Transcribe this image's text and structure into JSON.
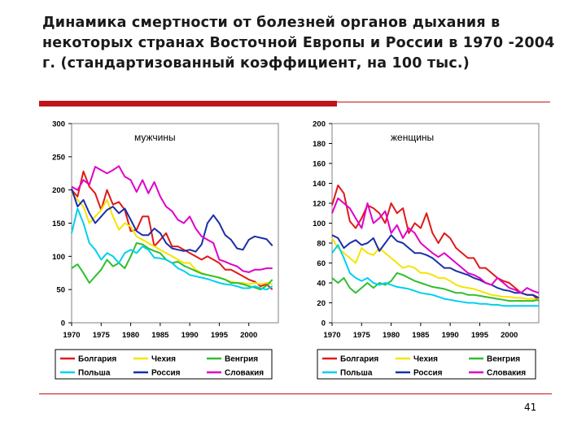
{
  "slide": {
    "title": "Динамика смертности от болезней органов дыхания в некоторых странах Восточной Европы и России в 1970 -2004 г. (стандартизованный коэффициент, на 100 тыс.)",
    "page_number": "41"
  },
  "chart_data": [
    {
      "type": "line",
      "title": "мужчины",
      "xlabel": "",
      "ylabel": "",
      "xlim": [
        1970,
        2005
      ],
      "ylim": [
        0,
        300
      ],
      "x_ticks": [
        1970,
        1975,
        1980,
        1985,
        1990,
        1995,
        2000
      ],
      "y_ticks": [
        0,
        50,
        100,
        150,
        200,
        250,
        300
      ],
      "legend_position": "bottom",
      "series": [
        {
          "name": "Болгария",
          "color": "#e01919",
          "x_start": 1970,
          "values": [
            200,
            190,
            228,
            205,
            195,
            170,
            200,
            178,
            182,
            170,
            138,
            140,
            160,
            160,
            115,
            125,
            135,
            115,
            115,
            110,
            105,
            100,
            95,
            100,
            95,
            90,
            80,
            80,
            75,
            70,
            65,
            62,
            55,
            58,
            50
          ]
        },
        {
          "name": "Чехия",
          "color": "#f5e400",
          "x_start": 1970,
          "values": [
            195,
            185,
            175,
            150,
            160,
            170,
            185,
            160,
            140,
            150,
            145,
            130,
            125,
            120,
            115,
            110,
            105,
            100,
            95,
            90,
            90,
            80,
            75,
            72,
            70,
            68,
            65,
            62,
            60,
            60,
            58,
            60,
            58,
            60,
            58
          ]
        },
        {
          "name": "Венгрия",
          "color": "#2fbf2f",
          "x_start": 1970,
          "values": [
            82,
            88,
            75,
            60,
            70,
            80,
            95,
            85,
            90,
            82,
            100,
            120,
            118,
            112,
            108,
            105,
            95,
            90,
            92,
            86,
            82,
            78,
            74,
            72,
            70,
            68,
            65,
            60,
            60,
            58,
            55,
            53,
            50,
            56,
            65
          ]
        },
        {
          "name": "Польша",
          "color": "#00d0f0",
          "x_start": 1970,
          "values": [
            135,
            172,
            150,
            120,
            110,
            95,
            105,
            100,
            90,
            105,
            110,
            105,
            115,
            110,
            98,
            97,
            95,
            90,
            82,
            78,
            72,
            70,
            68,
            66,
            63,
            60,
            58,
            57,
            55,
            52,
            52,
            55,
            52,
            50,
            55
          ]
        },
        {
          "name": "Россия",
          "color": "#1a2fa8",
          "x_start": 1970,
          "values": [
            202,
            175,
            185,
            165,
            150,
            160,
            170,
            175,
            165,
            172,
            155,
            138,
            132,
            132,
            142,
            135,
            120,
            112,
            110,
            108,
            110,
            107,
            118,
            150,
            162,
            150,
            132,
            125,
            112,
            110,
            125,
            130,
            128,
            126,
            116
          ]
        },
        {
          "name": "Словакия",
          "color": "#e000c8",
          "x_start": 1970,
          "values": [
            205,
            200,
            215,
            208,
            235,
            230,
            225,
            230,
            236,
            220,
            215,
            197,
            215,
            195,
            212,
            190,
            175,
            168,
            155,
            150,
            160,
            142,
            130,
            125,
            120,
            95,
            92,
            88,
            85,
            78,
            76,
            80,
            80,
            82,
            82
          ]
        }
      ]
    },
    {
      "type": "line",
      "title": "женщины",
      "xlabel": "",
      "ylabel": "",
      "xlim": [
        1970,
        2005
      ],
      "ylim": [
        0,
        200
      ],
      "x_ticks": [
        1970,
        1975,
        1980,
        1985,
        1990,
        1995,
        2000
      ],
      "y_ticks": [
        0,
        20,
        40,
        60,
        80,
        100,
        120,
        140,
        160,
        180,
        200
      ],
      "legend_position": "bottom",
      "series": [
        {
          "name": "Болгария",
          "color": "#e01919",
          "x_start": 1970,
          "values": [
            118,
            138,
            130,
            102,
            95,
            105,
            118,
            115,
            110,
            100,
            120,
            110,
            115,
            90,
            100,
            95,
            110,
            90,
            80,
            90,
            85,
            75,
            70,
            65,
            65,
            55,
            55,
            50,
            45,
            42,
            40,
            35,
            30,
            28,
            28,
            22
          ]
        },
        {
          "name": "Чехия",
          "color": "#f5e400",
          "x_start": 1970,
          "values": [
            85,
            75,
            70,
            65,
            60,
            75,
            70,
            68,
            75,
            70,
            65,
            60,
            55,
            57,
            55,
            50,
            50,
            48,
            45,
            45,
            42,
            38,
            36,
            35,
            34,
            32,
            30,
            28,
            27,
            26,
            26,
            25,
            25,
            24,
            24,
            23
          ]
        },
        {
          "name": "Венгрия",
          "color": "#2fbf2f",
          "x_start": 1970,
          "values": [
            45,
            40,
            45,
            35,
            30,
            35,
            40,
            35,
            40,
            38,
            42,
            50,
            48,
            45,
            42,
            40,
            38,
            36,
            35,
            34,
            32,
            30,
            30,
            28,
            28,
            27,
            26,
            25,
            24,
            23,
            22,
            22,
            22,
            22,
            22,
            23
          ]
        },
        {
          "name": "Польша",
          "color": "#00d0f0",
          "x_start": 1970,
          "values": [
            70,
            78,
            65,
            50,
            45,
            42,
            45,
            40,
            38,
            40,
            38,
            36,
            35,
            34,
            32,
            30,
            29,
            28,
            26,
            24,
            23,
            22,
            21,
            20,
            20,
            19,
            19,
            18,
            18,
            17,
            17,
            17,
            17,
            17,
            17,
            17
          ]
        },
        {
          "name": "Россия",
          "color": "#1a2fa8",
          "x_start": 1970,
          "values": [
            88,
            85,
            75,
            80,
            83,
            78,
            80,
            85,
            72,
            80,
            88,
            82,
            80,
            75,
            70,
            70,
            68,
            65,
            60,
            55,
            55,
            52,
            50,
            48,
            45,
            43,
            40,
            38,
            35,
            33,
            32,
            30,
            30,
            28,
            28,
            25
          ]
        },
        {
          "name": "Словакия",
          "color": "#e000c8",
          "x_start": 1970,
          "values": [
            110,
            125,
            120,
            115,
            105,
            95,
            120,
            100,
            105,
            112,
            90,
            98,
            85,
            95,
            90,
            80,
            75,
            70,
            66,
            70,
            65,
            60,
            55,
            50,
            48,
            45,
            40,
            38,
            45,
            40,
            35,
            33,
            30,
            35,
            32,
            30
          ]
        }
      ]
    }
  ]
}
